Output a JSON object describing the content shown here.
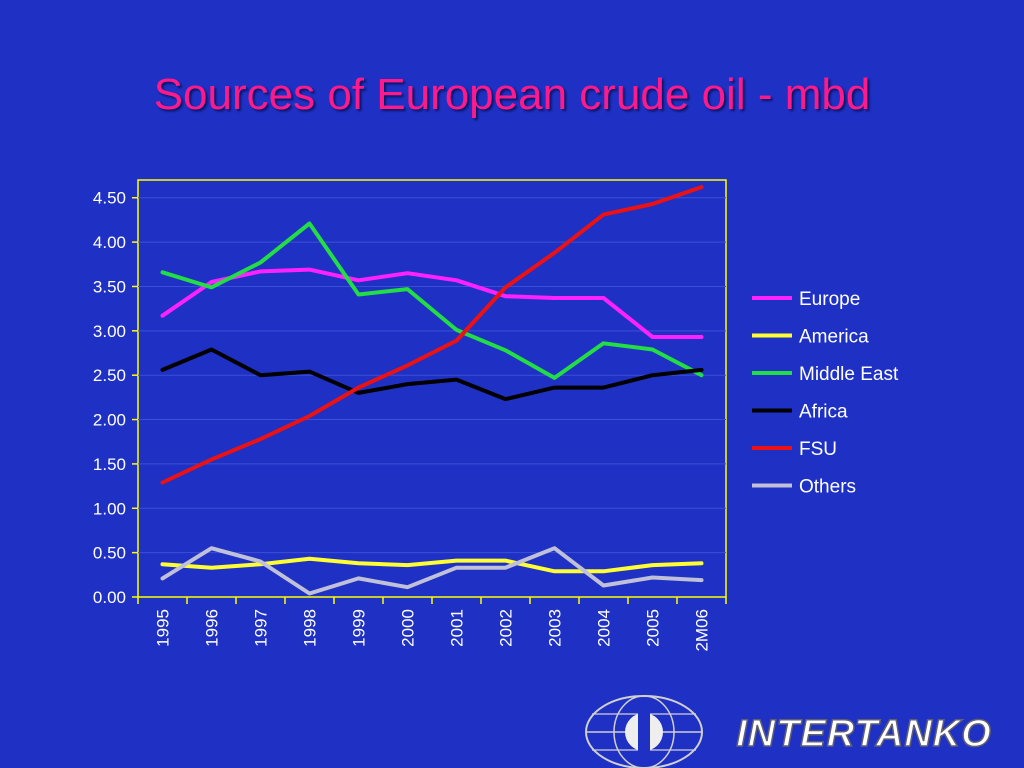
{
  "slide": {
    "title": "Sources of European crude oil - mbd",
    "logo_text": "INTERTANKO"
  },
  "colors": {
    "background": "#1f31c4",
    "title": "#ff1a8c",
    "axis": "#ffff00",
    "gridline": "#3b4fd6"
  },
  "chart_data": {
    "type": "line",
    "title": "Sources of European crude oil - mbd",
    "xlabel": "",
    "ylabel": "",
    "ylim": [
      0,
      4.7
    ],
    "yticks": [
      "0.00",
      "0.50",
      "1.00",
      "1.50",
      "2.00",
      "2.50",
      "3.00",
      "3.50",
      "4.00",
      "4.50"
    ],
    "grid": true,
    "legend_position": "right",
    "categories": [
      "1995",
      "1996",
      "1997",
      "1998",
      "1999",
      "2000",
      "2001",
      "2002",
      "2003",
      "2004",
      "2005",
      "2M06"
    ],
    "series": [
      {
        "name": "Europe",
        "color": "#ff22ff",
        "values": [
          3.17,
          3.55,
          3.67,
          3.69,
          3.57,
          3.65,
          3.57,
          3.39,
          3.37,
          3.37,
          2.93,
          2.93
        ]
      },
      {
        "name": "America",
        "color": "#ffff33",
        "values": [
          0.37,
          0.33,
          0.37,
          0.43,
          0.38,
          0.36,
          0.41,
          0.41,
          0.29,
          0.29,
          0.36,
          0.38
        ]
      },
      {
        "name": "Middle East",
        "color": "#22dd44",
        "values": [
          3.66,
          3.49,
          3.77,
          4.21,
          3.41,
          3.47,
          3.01,
          2.78,
          2.47,
          2.86,
          2.79,
          2.5
        ]
      },
      {
        "name": "Africa",
        "color": "#000000",
        "values": [
          2.56,
          2.79,
          2.5,
          2.54,
          2.3,
          2.4,
          2.45,
          2.23,
          2.36,
          2.36,
          2.5,
          2.56
        ]
      },
      {
        "name": "FSU",
        "color": "#ee1111",
        "values": [
          1.29,
          1.55,
          1.78,
          2.04,
          2.36,
          2.61,
          2.89,
          3.49,
          3.88,
          4.31,
          4.43,
          4.62
        ]
      },
      {
        "name": "Others",
        "color": "#c0c0d8",
        "values": [
          0.21,
          0.55,
          0.4,
          0.04,
          0.21,
          0.11,
          0.33,
          0.33,
          0.55,
          0.13,
          0.22,
          0.19
        ]
      }
    ]
  }
}
